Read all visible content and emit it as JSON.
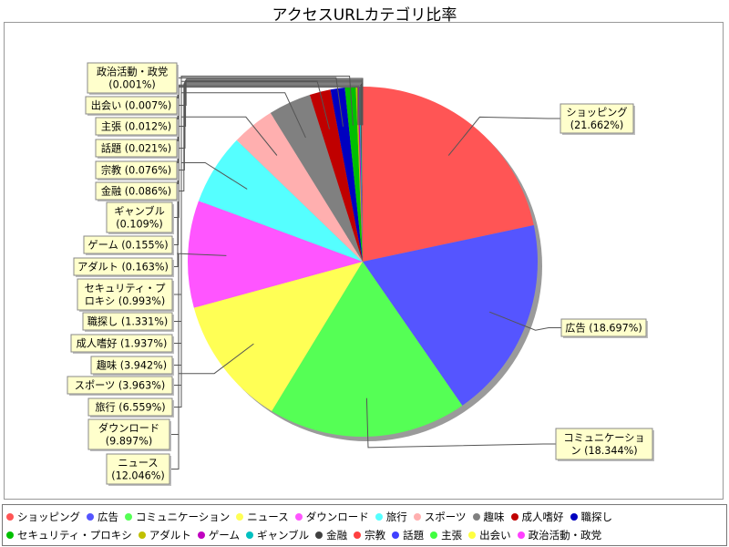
{
  "chart_data": {
    "type": "pie",
    "title": "アクセスURLカテゴリ比率",
    "slices": [
      {
        "name": "ショッピング",
        "value": 21.662,
        "label": [
          "ショッピング",
          "(21.662%)"
        ],
        "color": "#ff5555"
      },
      {
        "name": "広告",
        "value": 18.697,
        "label": [
          "広告 (18.697%)"
        ],
        "color": "#5555ff"
      },
      {
        "name": "コミュニケーション",
        "value": 18.344,
        "label": [
          "コミュニケーショ",
          "ン (18.344%)"
        ],
        "color": "#55ff55"
      },
      {
        "name": "ニュース",
        "value": 12.046,
        "label": [
          "ニュース",
          "(12.046%)"
        ],
        "color": "#ffff55"
      },
      {
        "name": "ダウンロード",
        "value": 9.897,
        "label": [
          "ダウンロード",
          "(9.897%)"
        ],
        "color": "#ff55ff"
      },
      {
        "name": "旅行",
        "value": 6.559,
        "label": [
          "旅行 (6.559%)"
        ],
        "color": "#55ffff"
      },
      {
        "name": "スポーツ",
        "value": 3.963,
        "label": [
          "スポーツ (3.963%)"
        ],
        "color": "#ffafaf"
      },
      {
        "name": "趣味",
        "value": 3.942,
        "label": [
          "趣味 (3.942%)"
        ],
        "color": "#808080"
      },
      {
        "name": "成人嗜好",
        "value": 1.937,
        "label": [
          "成人嗜好 (1.937%)"
        ],
        "color": "#c00000"
      },
      {
        "name": "職探し",
        "value": 1.331,
        "label": [
          "職探し (1.331%)"
        ],
        "color": "#0000c0"
      },
      {
        "name": "セキュリティ・プロキシ",
        "value": 0.993,
        "label": [
          "セキュリティ・プ",
          "ロキシ (0.993%)"
        ],
        "color": "#00c000"
      },
      {
        "name": "アダルト",
        "value": 0.163,
        "label": [
          "アダルト (0.163%)"
        ],
        "color": "#c0c000"
      },
      {
        "name": "ゲーム",
        "value": 0.155,
        "label": [
          "ゲーム (0.155%)"
        ],
        "color": "#c000c0"
      },
      {
        "name": "ギャンブル",
        "value": 0.109,
        "label": [
          "ギャンブル",
          "(0.109%)"
        ],
        "color": "#00c0c0"
      },
      {
        "name": "金融",
        "value": 0.086,
        "label": [
          "金融 (0.086%)"
        ],
        "color": "#404040"
      },
      {
        "name": "宗教",
        "value": 0.076,
        "label": [
          "宗教 (0.076%)"
        ],
        "color": "#ff4040"
      },
      {
        "name": "話題",
        "value": 0.021,
        "label": [
          "話題 (0.021%)"
        ],
        "color": "#4040ff"
      },
      {
        "name": "主張",
        "value": 0.012,
        "label": [
          "主張 (0.012%)"
        ],
        "color": "#40ff40"
      },
      {
        "name": "出会い",
        "value": 0.007,
        "label": [
          "出会い (0.007%)"
        ],
        "color": "#ffff40"
      },
      {
        "name": "政治活動・政党",
        "value": 0.001,
        "label": [
          "政治活動・政党",
          "(0.001%)"
        ],
        "color": "#ff40ff"
      }
    ]
  }
}
